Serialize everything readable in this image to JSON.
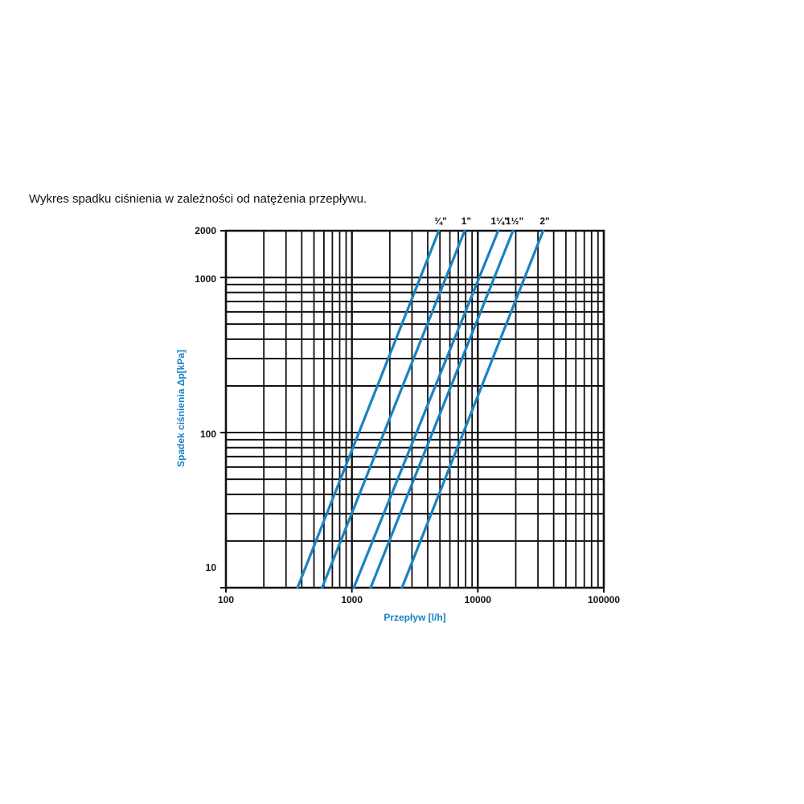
{
  "chart_data": {
    "type": "line",
    "title": "Wykres spadku ciśnienia w zależności od natężenia przepływu.",
    "xlabel": "Przepływ [l/h]",
    "ylabel": "Spadek ciśnienia Δp[kPa]",
    "xscale": "log",
    "yscale": "log",
    "xlim": [
      100,
      100000
    ],
    "ylim": [
      10,
      2000
    ],
    "grid": true,
    "x_ticks": [
      "100",
      "1000",
      "10000",
      "100000"
    ],
    "y_ticks": [
      "2000",
      "1000",
      "100",
      "10"
    ],
    "legend": "top, labels at line ends",
    "colors": {
      "series": "#1a82c4",
      "grid": "#111111",
      "axis_label": "#1a82c4"
    },
    "series": [
      {
        "name": "¾\"",
        "x": [
          370,
          4900
        ],
        "y": [
          10,
          2000
        ]
      },
      {
        "name": "1\"",
        "x": [
          580,
          7850
        ],
        "y": [
          10,
          2000
        ]
      },
      {
        "name": "1¼\"",
        "x": [
          1035,
          14500
        ],
        "y": [
          10,
          2000
        ]
      },
      {
        "name": "1½\"",
        "x": [
          1410,
          19000
        ],
        "y": [
          10,
          2000
        ]
      },
      {
        "name": "2\"",
        "x": [
          2500,
          33000
        ],
        "y": [
          10,
          2000
        ]
      }
    ]
  }
}
